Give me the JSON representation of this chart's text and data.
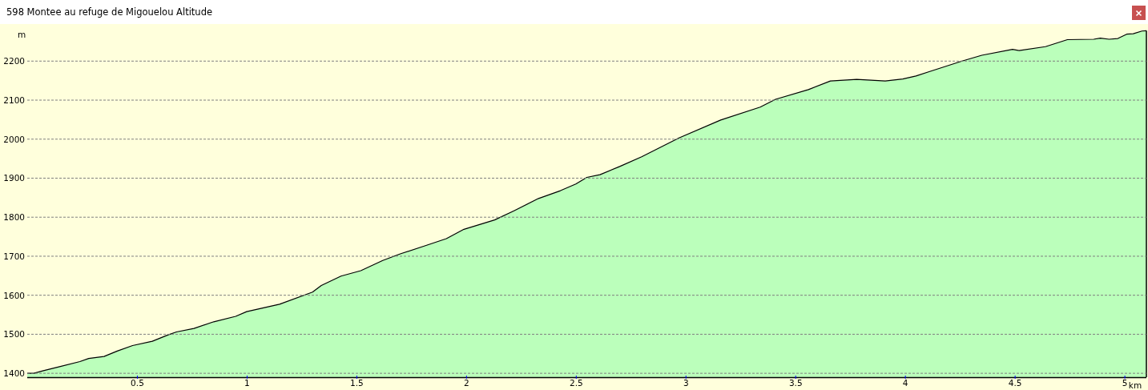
{
  "chart_data": {
    "type": "area",
    "title": "598 Montee au refuge de Migouelou Altitude",
    "xlabel": "km",
    "ylabel": "m",
    "x": [
      0,
      0.03,
      0.07,
      0.14,
      0.24,
      0.28,
      0.35,
      0.41,
      0.48,
      0.57,
      0.64,
      0.68,
      0.76,
      0.85,
      0.95,
      1.0,
      1.15,
      1.3,
      1.34,
      1.43,
      1.52,
      1.62,
      1.7,
      1.82,
      1.91,
      1.99,
      2.13,
      2.22,
      2.33,
      2.43,
      2.5,
      2.55,
      2.61,
      2.7,
      2.8,
      2.97,
      3.16,
      3.34,
      3.41,
      3.56,
      3.66,
      3.78,
      3.91,
      3.99,
      4.05,
      4.11,
      4.26,
      4.35,
      4.49,
      4.52,
      4.64,
      4.74,
      4.86,
      4.89,
      4.93,
      4.97,
      5.01,
      5.04,
      5.08,
      5.1
    ],
    "values": [
      1400,
      1400,
      1406,
      1416,
      1430,
      1438,
      1443,
      1457,
      1471,
      1482,
      1498,
      1506,
      1515,
      1532,
      1546,
      1558,
      1577,
      1608,
      1625,
      1649,
      1663,
      1689,
      1706,
      1728,
      1745,
      1769,
      1793,
      1817,
      1848,
      1868,
      1885,
      1902,
      1909,
      1930,
      1955,
      2003,
      2049,
      2082,
      2102,
      2127,
      2149,
      2153,
      2149,
      2154,
      2162,
      2173,
      2200,
      2215,
      2230,
      2227,
      2237,
      2255,
      2256,
      2259,
      2256,
      2258,
      2269,
      2270,
      2277,
      2278
    ],
    "color": "#bbffbb",
    "xlim": [
      0,
      5.1
    ],
    "ylim": [
      1390,
      2295
    ],
    "xticks": [
      0.5,
      1,
      1.5,
      2,
      2.5,
      3,
      3.5,
      4,
      4.5,
      5
    ],
    "yticks": [
      1400,
      1500,
      1600,
      1700,
      1800,
      1900,
      2000,
      2100,
      2200
    ],
    "grid": "y"
  }
}
